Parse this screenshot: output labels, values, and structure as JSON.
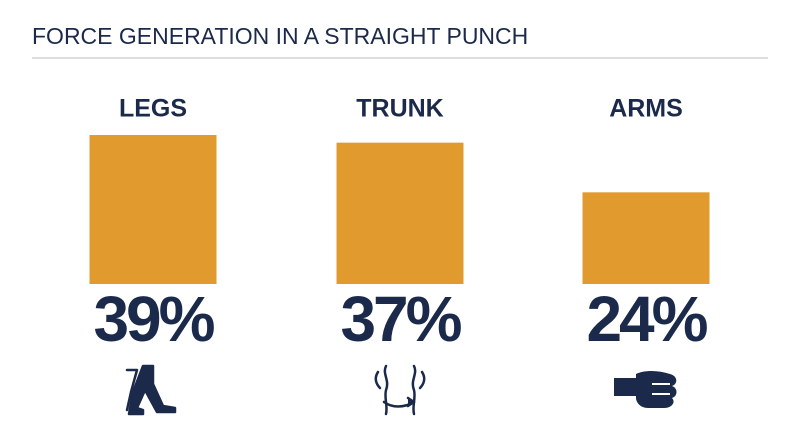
{
  "chart_data": {
    "type": "bar",
    "title": "FORCE GENERATION IN A STRAIGHT PUNCH",
    "categories": [
      "LEGS",
      "TRUNK",
      "ARMS"
    ],
    "values": [
      39,
      37,
      24
    ],
    "value_labels": [
      "39%",
      "37%",
      "24%"
    ],
    "color": "#e09a2e"
  }
}
